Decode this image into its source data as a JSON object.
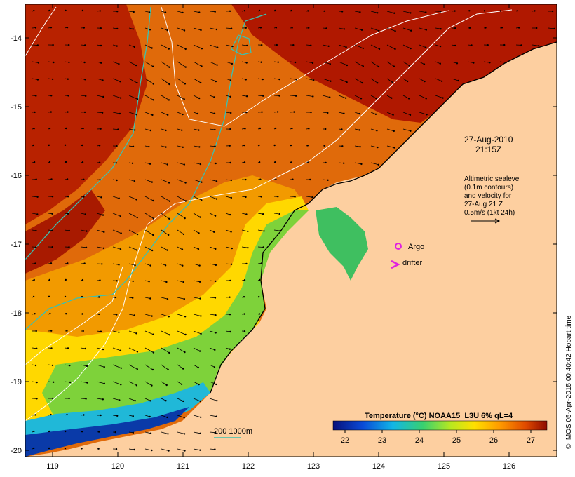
{
  "timestamp": {
    "date": "27-Aug-2010",
    "time": "21:15Z"
  },
  "altimetry_note": {
    "line1": "Altimetric sealevel",
    "line2": "(0.1m contours)",
    "line3": "and velocity for",
    "line4": "27-Aug 21 Z",
    "line5": "0.5m/s (1kt 24h)"
  },
  "legend": {
    "argo": "Argo",
    "drifter": "drifter",
    "bathymetry": "200  1000m"
  },
  "colorbar": {
    "title": "Temperature (°C) NOAA15_L3U 6% qL=4",
    "ticks": [
      "22",
      "23",
      "24",
      "25",
      "26",
      "27"
    ],
    "colors": [
      "#08107a",
      "#0a4bd8",
      "#12b6e6",
      "#38d070",
      "#b8e820",
      "#ffe000",
      "#ff9a00",
      "#e04a00",
      "#8e0a00"
    ]
  },
  "axes": {
    "lon_ticks": [
      "119",
      "120",
      "121",
      "122",
      "123",
      "124",
      "125",
      "126"
    ],
    "lat_ticks": [
      "-14",
      "-15",
      "-16",
      "-17",
      "-18",
      "-19",
      "-20"
    ]
  },
  "colors": {
    "land": "#fdcfa0",
    "contour": "#ffffff",
    "bathy": "#3cc0b0",
    "marker": "#e020e0"
  },
  "credit": "© IMOS 05-Apr-2015 00:40:42 Hobart time"
}
